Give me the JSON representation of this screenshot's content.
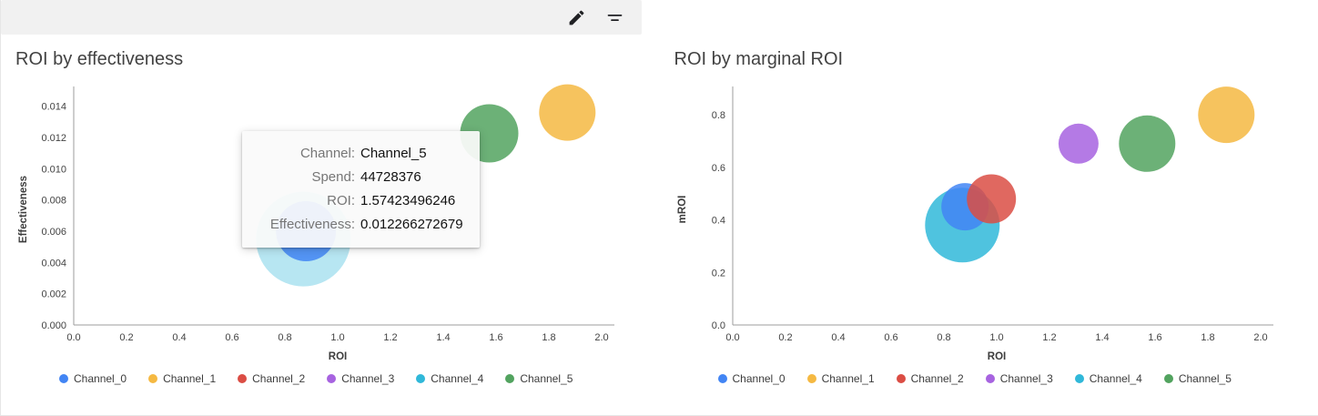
{
  "toolbar": {
    "icons": [
      "pencil-icon",
      "filter-list-icon"
    ]
  },
  "channels": [
    {
      "name": "Channel_0",
      "color": "#4285f4"
    },
    {
      "name": "Channel_1",
      "color": "#f5b942"
    },
    {
      "name": "Channel_2",
      "color": "#db4d44"
    },
    {
      "name": "Channel_3",
      "color": "#a763e0"
    },
    {
      "name": "Channel_4",
      "color": "#30b8d9"
    },
    {
      "name": "Channel_5",
      "color": "#52a35f"
    }
  ],
  "tooltip": {
    "rows": [
      {
        "label": "Channel:",
        "value": "Channel_5"
      },
      {
        "label": "Spend:",
        "value": "44728376"
      },
      {
        "label": "ROI:",
        "value": "1.57423496246"
      },
      {
        "label": "Effectiveness:",
        "value": "0.012266272679"
      }
    ]
  },
  "chart_data": [
    {
      "type": "scatter",
      "title": "ROI by effectiveness",
      "xlabel": "ROI",
      "ylabel": "Effectiveness",
      "xlim": [
        0,
        2.0
      ],
      "ylim": [
        0,
        0.0148
      ],
      "xticks": [
        0,
        0.2,
        0.4,
        0.6,
        0.8,
        1.0,
        1.2,
        1.4,
        1.6,
        1.8,
        2.0
      ],
      "yticks": [
        0,
        0.002,
        0.004,
        0.006,
        0.008,
        0.01,
        0.012,
        0.014
      ],
      "xtick_decimals": 1,
      "ytick_decimals": 3,
      "grid": false,
      "legend_position": "bottom",
      "points": [
        {
          "channel": "Channel_4",
          "x": 0.87,
          "y": 0.0055,
          "r": 52,
          "opacity": 0.35
        },
        {
          "channel": "Channel_0",
          "x": 0.88,
          "y": 0.006,
          "r": 33
        },
        {
          "channel": "Channel_5",
          "x": 1.57423496246,
          "y": 0.012266272679,
          "r": 32
        },
        {
          "channel": "Channel_1",
          "x": 1.87,
          "y": 0.0136,
          "r": 31
        }
      ]
    },
    {
      "type": "scatter",
      "title": "ROI by marginal ROI",
      "xlabel": "ROI",
      "ylabel": "mROI",
      "xlim": [
        0,
        2.0
      ],
      "ylim": [
        0,
        0.88
      ],
      "xticks": [
        0,
        0.2,
        0.4,
        0.6,
        0.8,
        1.0,
        1.2,
        1.4,
        1.6,
        1.8,
        2.0
      ],
      "yticks": [
        0,
        0.2,
        0.4,
        0.6,
        0.8
      ],
      "xtick_decimals": 1,
      "ytick_decimals": 1,
      "grid": false,
      "legend_position": "bottom",
      "points": [
        {
          "channel": "Channel_4",
          "x": 0.87,
          "y": 0.38,
          "r": 41
        },
        {
          "channel": "Channel_0",
          "x": 0.88,
          "y": 0.45,
          "r": 26
        },
        {
          "channel": "Channel_2",
          "x": 0.98,
          "y": 0.48,
          "r": 27
        },
        {
          "channel": "Channel_3",
          "x": 1.31,
          "y": 0.69,
          "r": 22
        },
        {
          "channel": "Channel_5",
          "x": 1.57,
          "y": 0.69,
          "r": 31
        },
        {
          "channel": "Channel_1",
          "x": 1.87,
          "y": 0.8,
          "r": 31
        }
      ]
    }
  ]
}
